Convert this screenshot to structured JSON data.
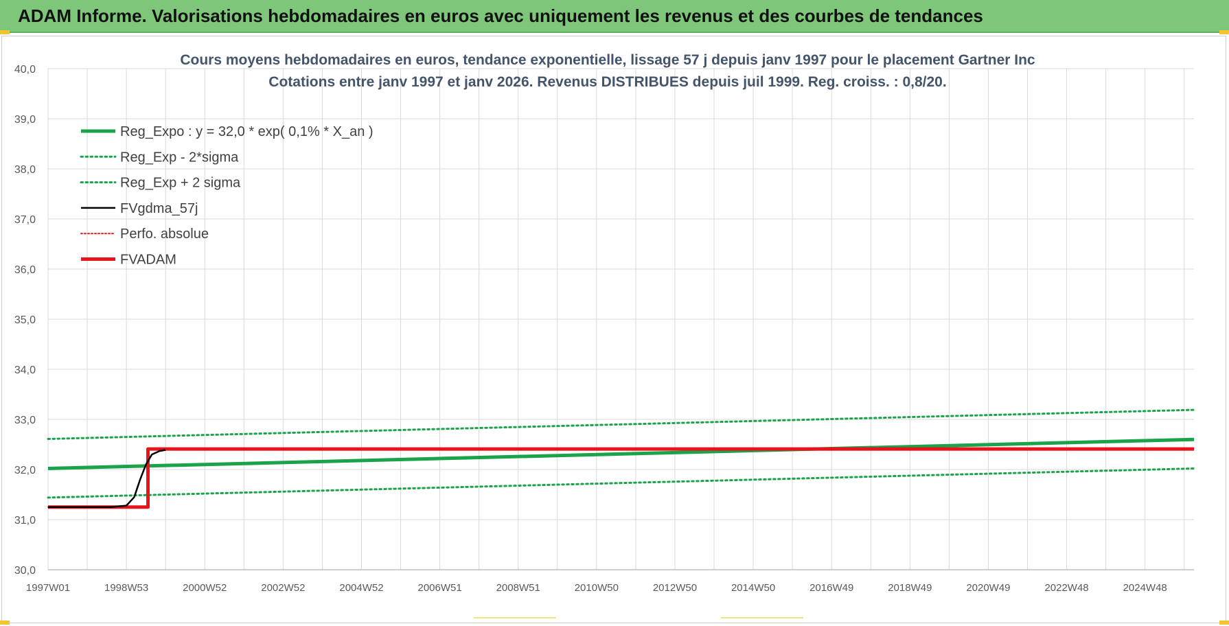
{
  "banner": {
    "title": "ADAM Informe. Valorisations hebdomadaires en euros avec uniquement les revenus et des courbes de tendances"
  },
  "colors": {
    "banner": "#7ec77a",
    "reg_green": "#1aa34a",
    "black": "#000000",
    "red": "#e8141c",
    "grid": "#d9d9d9"
  },
  "chart_data": {
    "type": "line",
    "title_line1": "Cours moyens hebdomadaires en euros, tendance exponentielle, lissage 57 j depuis janv 1997  pour le placement Gartner Inc",
    "title_line2": "Cotations entre janv 1997 et janv 2026. Revenus DISTRIBUES depuis juil 1999. Reg. croiss. : 0,8/20.",
    "ylim": [
      30.0,
      40.0
    ],
    "y_ticks": [
      "30,0",
      "31,0",
      "32,0",
      "33,0",
      "34,0",
      "35,0",
      "36,0",
      "37,0",
      "38,0",
      "39,0",
      "40,0"
    ],
    "x_tick_labels": [
      "1997W01",
      "1998W53",
      "2000W52",
      "2002W52",
      "2004W52",
      "2006W51",
      "2008W51",
      "2010W50",
      "2012W50",
      "2014W50",
      "2016W49",
      "2018W49",
      "2020W49",
      "2022W48",
      "2024W48"
    ],
    "xlim_years": [
      1997.0,
      2026.25
    ],
    "grid": true,
    "legend_position": "top-left",
    "series": [
      {
        "name": "Reg_Expo : y = 32,0 * exp( 0,1% *  X_an )",
        "style": "solid-thick",
        "color": "#1aa34a",
        "points": [
          [
            1997.0,
            32.02
          ],
          [
            2026.25,
            32.6
          ]
        ]
      },
      {
        "name": "Reg_Exp - 2*sigma",
        "style": "dotted",
        "color": "#1aa34a",
        "points": [
          [
            1997.0,
            31.44
          ],
          [
            2026.25,
            32.02
          ]
        ]
      },
      {
        "name": "Reg_Exp + 2 sigma",
        "style": "dotted",
        "color": "#1aa34a",
        "points": [
          [
            1997.0,
            32.61
          ],
          [
            2026.25,
            33.19
          ]
        ]
      },
      {
        "name": "FVgdma_57j",
        "style": "solid-thin",
        "color": "#000000",
        "points": [
          [
            1997.0,
            31.25
          ],
          [
            1998.6,
            31.25
          ],
          [
            1999.0,
            31.28
          ],
          [
            1999.2,
            31.45
          ],
          [
            1999.35,
            31.8
          ],
          [
            1999.5,
            32.1
          ],
          [
            1999.65,
            32.3
          ],
          [
            1999.85,
            32.37
          ],
          [
            2000.0,
            32.39
          ]
        ]
      },
      {
        "name": "Perfo. absolue",
        "style": "dotted",
        "color": "#e8141c",
        "points": [
          [
            1997.0,
            31.25
          ],
          [
            1999.55,
            31.25
          ],
          [
            1999.55,
            32.41
          ],
          [
            2026.25,
            32.41
          ]
        ]
      },
      {
        "name": "FVADAM",
        "style": "solid-thick",
        "color": "#e8141c",
        "points": [
          [
            1997.0,
            31.25
          ],
          [
            1999.55,
            31.25
          ],
          [
            1999.55,
            32.41
          ],
          [
            2026.25,
            32.41
          ]
        ]
      }
    ]
  }
}
